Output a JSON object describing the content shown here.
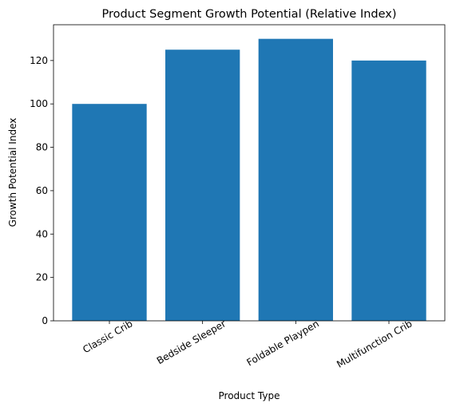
{
  "chart_data": {
    "type": "bar",
    "title": "Product Segment Growth Potential (Relative Index)",
    "xlabel": "Product Type",
    "ylabel": "Growth Potential Index",
    "categories": [
      "Classic Crib",
      "Bedside Sleeper",
      "Foldable Playpen",
      "Multifunction Crib"
    ],
    "values": [
      100,
      125,
      130,
      120
    ],
    "ylim": [
      0,
      136.5
    ],
    "yticks": [
      0,
      20,
      40,
      60,
      80,
      100,
      120
    ],
    "bar_color": "#1f77b4",
    "grid": false,
    "legend": "none"
  }
}
